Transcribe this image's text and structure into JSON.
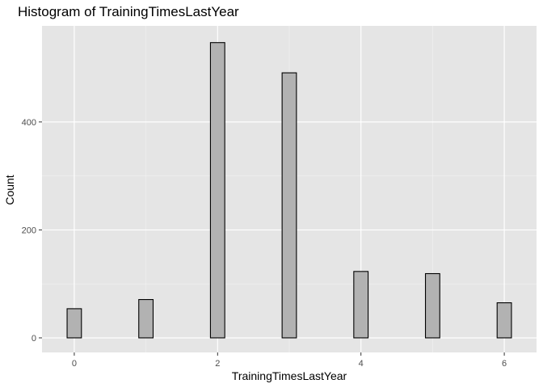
{
  "chart_data": {
    "type": "bar",
    "title": "Histogram of TrainingTimesLastYear",
    "xlabel": "TrainingTimesLastYear",
    "ylabel": "Count",
    "xlim": [
      -0.45,
      6.45
    ],
    "ylim": [
      -27,
      578
    ],
    "x_ticks": [
      0,
      2,
      4,
      6
    ],
    "x_tick_labels": [
      "0",
      "2",
      "4",
      "6"
    ],
    "y_ticks": [
      0,
      200,
      400
    ],
    "y_tick_labels": [
      "0",
      "200",
      "400"
    ],
    "bin_width": 0.2,
    "x": [
      0,
      0.2,
      0.4,
      0.6,
      0.8,
      1,
      1.2,
      1.4,
      1.6,
      1.8,
      2,
      2.2,
      2.4,
      2.6,
      2.8,
      3,
      3.2,
      3.4,
      3.6,
      3.8,
      4,
      4.2,
      4.4,
      4.6,
      4.8,
      5,
      5.2,
      5.4,
      5.6,
      5.8,
      6
    ],
    "values": [
      54,
      0,
      0,
      0,
      0,
      71,
      0,
      0,
      0,
      0,
      547,
      0,
      0,
      0,
      0,
      491,
      0,
      0,
      0,
      0,
      123,
      0,
      0,
      0,
      0,
      119,
      0,
      0,
      0,
      0,
      65
    ],
    "grid": true,
    "colors": {
      "panel_background": "#e5e5e5",
      "grid_major": "#ffffff",
      "grid_minor": "#f2f2f2",
      "bar_fill": "#b2b2b2",
      "bar_outline": "#000000"
    }
  }
}
